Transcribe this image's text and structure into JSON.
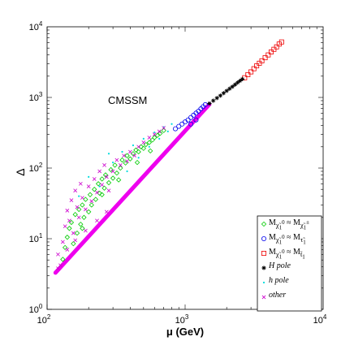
{
  "chart_data": {
    "type": "scatter",
    "xscale": "log",
    "yscale": "log",
    "xlim": [
      100,
      10000
    ],
    "ylim": [
      1,
      10000
    ],
    "x_ticks": [
      100,
      1000,
      10000
    ],
    "y_ticks": [
      1,
      10,
      100,
      1000,
      10000
    ],
    "x_tick_labels": [
      {
        "base": "10",
        "exp": "2"
      },
      {
        "base": "10",
        "exp": "3"
      },
      {
        "base": "10",
        "exp": "4"
      }
    ],
    "y_tick_labels": [
      {
        "base": "10",
        "exp": "0"
      },
      {
        "base": "10",
        "exp": "1"
      },
      {
        "base": "10",
        "exp": "2"
      },
      {
        "base": "10",
        "exp": "3"
      },
      {
        "base": "10",
        "exp": "4"
      }
    ],
    "xlabel": "μ (GeV)",
    "ylabel": "Δ",
    "annotation": "CMSSM",
    "grid": false,
    "legend_position": "bottom-right",
    "series": [
      {
        "key": "chargino",
        "marker": "diamond",
        "color": "#00cc00",
        "label_html": "M<sub>χ̃<sub>1</sub><sup>0</sup></sub> ≈ M<sub>χ̃<sub>1</sub><sup>±</sup></sub>",
        "points": [
          [
            130,
            5.1
          ],
          [
            135,
            7.5
          ],
          [
            140,
            10.5
          ],
          [
            145,
            14
          ],
          [
            150,
            17
          ],
          [
            155,
            8.5
          ],
          [
            160,
            22
          ],
          [
            165,
            12
          ],
          [
            170,
            26
          ],
          [
            175,
            16
          ],
          [
            180,
            30
          ],
          [
            185,
            20
          ],
          [
            190,
            36
          ],
          [
            200,
            24
          ],
          [
            205,
            42
          ],
          [
            210,
            30
          ],
          [
            220,
            50
          ],
          [
            225,
            36
          ],
          [
            235,
            60
          ],
          [
            240,
            44
          ],
          [
            250,
            70
          ],
          [
            260,
            52
          ],
          [
            265,
            80
          ],
          [
            280,
            62
          ],
          [
            290,
            95
          ],
          [
            300,
            72
          ],
          [
            310,
            110
          ],
          [
            320,
            85
          ],
          [
            340,
            100
          ],
          [
            350,
            130
          ],
          [
            370,
            118
          ],
          [
            380,
            150
          ],
          [
            400,
            135
          ],
          [
            420,
            160
          ],
          [
            440,
            180
          ],
          [
            460,
            170
          ],
          [
            480,
            200
          ],
          [
            500,
            190
          ],
          [
            520,
            215
          ],
          [
            550,
            230
          ],
          [
            580,
            250
          ],
          [
            600,
            270
          ],
          [
            630,
            290
          ],
          [
            660,
            310
          ],
          [
            700,
            340
          ],
          [
            180,
            14
          ],
          [
            250,
            42
          ],
          [
            330,
            68
          ],
          [
            450,
            120
          ],
          [
            560,
            175
          ]
        ]
      },
      {
        "key": "stau",
        "marker": "circle",
        "color": "#0000ee",
        "label_html": "M<sub>χ̃<sub>1</sub><sup>0</sup></sub> ≈ M<sub>τ̃<sub>1</sub></sub>",
        "points": [
          [
            850,
            360
          ],
          [
            900,
            390
          ],
          [
            950,
            420
          ],
          [
            1000,
            450
          ],
          [
            1050,
            480
          ],
          [
            1100,
            520
          ],
          [
            1150,
            560
          ],
          [
            1200,
            600
          ],
          [
            1250,
            640
          ],
          [
            1300,
            690
          ],
          [
            1350,
            740
          ],
          [
            1400,
            790
          ],
          [
            1100,
            420
          ],
          [
            1200,
            480
          ]
        ]
      },
      {
        "key": "stop",
        "marker": "square",
        "color": "#ee0000",
        "label_html": "M<sub>χ̃<sub>1</sub><sup>0</sup></sub> ≈ M<sub>t̃<sub>1</sub></sub>",
        "points": [
          [
            2700,
            1900
          ],
          [
            2850,
            2100
          ],
          [
            3000,
            2300
          ],
          [
            3150,
            2550
          ],
          [
            3300,
            2800
          ],
          [
            3450,
            3050
          ],
          [
            3600,
            3300
          ],
          [
            3800,
            3650
          ],
          [
            4000,
            4000
          ],
          [
            4200,
            4400
          ],
          [
            4400,
            4800
          ],
          [
            4600,
            5200
          ],
          [
            4800,
            5700
          ],
          [
            5000,
            6100
          ]
        ]
      },
      {
        "key": "hpole_big",
        "marker": "star",
        "color": "#000000",
        "label_html": "<i>H pole</i>",
        "points": [
          [
            1500,
            820
          ],
          [
            1600,
            900
          ],
          [
            1700,
            980
          ],
          [
            1800,
            1060
          ],
          [
            1900,
            1150
          ],
          [
            2000,
            1240
          ],
          [
            2100,
            1330
          ],
          [
            2200,
            1420
          ],
          [
            2300,
            1520
          ],
          [
            2400,
            1620
          ],
          [
            2500,
            1720
          ],
          [
            2600,
            1820
          ]
        ]
      },
      {
        "key": "hpole_small",
        "marker": "dot",
        "color": "#00dddd",
        "label_html": "<i>h pole</i>",
        "points": [
          [
            200,
            75
          ],
          [
            240,
            55
          ],
          [
            300,
            120
          ],
          [
            350,
            170
          ],
          [
            380,
            90
          ],
          [
            420,
            210
          ],
          [
            460,
            140
          ],
          [
            500,
            260
          ],
          [
            550,
            200
          ],
          [
            600,
            320
          ],
          [
            650,
            260
          ],
          [
            700,
            380
          ],
          [
            750,
            330
          ],
          [
            800,
            420
          ],
          [
            170,
            40
          ],
          [
            280,
            160
          ]
        ]
      },
      {
        "key": "other",
        "marker": "cross",
        "color": "#cc00cc",
        "label_html": "<i>other</i>",
        "points": [
          [
            120,
            6
          ],
          [
            125,
            4.2
          ],
          [
            130,
            9
          ],
          [
            135,
            15
          ],
          [
            140,
            25
          ],
          [
            145,
            18
          ],
          [
            150,
            35
          ],
          [
            155,
            12
          ],
          [
            160,
            48
          ],
          [
            165,
            28
          ],
          [
            170,
            20
          ],
          [
            175,
            60
          ],
          [
            180,
            38
          ],
          [
            190,
            26
          ],
          [
            200,
            55
          ],
          [
            210,
            34
          ],
          [
            220,
            70
          ],
          [
            230,
            45
          ],
          [
            240,
            90
          ],
          [
            250,
            58
          ],
          [
            260,
            110
          ],
          [
            270,
            75
          ],
          [
            280,
            48
          ],
          [
            300,
            90
          ],
          [
            320,
            130
          ],
          [
            340,
            110
          ],
          [
            360,
            150
          ],
          [
            380,
            125
          ],
          [
            400,
            170
          ],
          [
            430,
            150
          ],
          [
            460,
            200
          ],
          [
            500,
            230
          ],
          [
            550,
            270
          ],
          [
            600,
            300
          ],
          [
            650,
            330
          ],
          [
            700,
            370
          ],
          [
            120,
            3.8
          ],
          [
            140,
            7
          ],
          [
            160,
            9.5
          ],
          [
            190,
            13
          ],
          [
            230,
            18
          ],
          [
            270,
            24
          ]
        ]
      }
    ],
    "band": {
      "color": "#ee00ee",
      "from": [
        115,
        3.3
      ],
      "to": [
        1500,
        800
      ]
    }
  }
}
